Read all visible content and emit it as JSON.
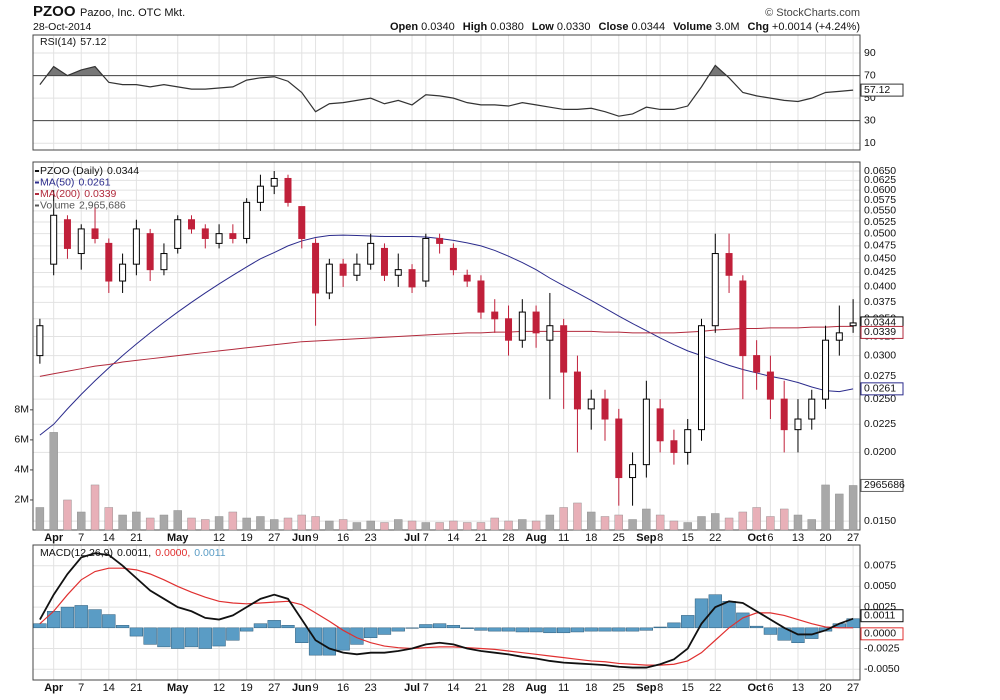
{
  "header": {
    "symbol": "PZOO",
    "name": "Pazoo, Inc. OTC Mkt.",
    "date": "28-Oct-2014",
    "source": "© StockCharts.com",
    "quote": [
      {
        "label": "Open",
        "value": "0.0340"
      },
      {
        "label": "High",
        "value": "0.0380"
      },
      {
        "label": "Low",
        "value": "0.0330"
      },
      {
        "label": "Close",
        "value": "0.0344"
      },
      {
        "label": "Volume",
        "value": "3.0M"
      },
      {
        "label": "Chg",
        "value": "+0.0014 (+4.24%)"
      }
    ]
  },
  "chart_data": [
    {
      "type": "candlestick",
      "name": "PZOO (Daily)",
      "log": true,
      "grid": true,
      "up_color": "#000000",
      "down_color": "#c0203a",
      "categories": [
        null,
        "Apr",
        null,
        "7",
        null,
        "14",
        null,
        "21",
        null,
        null,
        "May",
        null,
        null,
        "12",
        null,
        "19",
        null,
        "27",
        null,
        "Jun",
        "9",
        null,
        "16",
        null,
        "23",
        null,
        null,
        "Jul",
        "7",
        null,
        "14",
        null,
        "21",
        null,
        "28",
        null,
        "Aug",
        null,
        "11",
        null,
        "18",
        null,
        "25",
        null,
        "Sep",
        "8",
        null,
        "15",
        null,
        "22",
        null,
        null,
        "Oct",
        "6",
        null,
        "13",
        null,
        "20",
        null,
        "27"
      ],
      "open": [
        0.03,
        0.044,
        0.053,
        0.046,
        0.051,
        0.048,
        0.041,
        0.044,
        0.05,
        0.043,
        0.047,
        0.053,
        0.051,
        0.048,
        0.05,
        0.049,
        0.057,
        0.061,
        0.063,
        0.056,
        0.048,
        0.039,
        0.044,
        0.042,
        0.044,
        0.047,
        0.042,
        0.043,
        0.041,
        0.049,
        0.047,
        0.042,
        0.041,
        0.036,
        0.035,
        0.032,
        0.036,
        0.032,
        0.034,
        0.028,
        0.024,
        0.025,
        0.023,
        0.018,
        0.019,
        0.024,
        0.021,
        0.02,
        0.022,
        0.034,
        0.046,
        0.041,
        0.03,
        0.028,
        0.025,
        0.022,
        0.023,
        0.025,
        0.032,
        0.034
      ],
      "high": [
        0.035,
        0.06,
        0.054,
        0.052,
        0.056,
        0.049,
        0.046,
        0.053,
        0.051,
        0.048,
        0.054,
        0.054,
        0.052,
        0.052,
        0.052,
        0.058,
        0.064,
        0.065,
        0.064,
        0.056,
        0.049,
        0.045,
        0.045,
        0.046,
        0.05,
        0.048,
        0.046,
        0.044,
        0.05,
        0.05,
        0.048,
        0.043,
        0.042,
        0.038,
        0.037,
        0.038,
        0.037,
        0.039,
        0.035,
        0.03,
        0.026,
        0.026,
        0.024,
        0.02,
        0.027,
        0.025,
        0.022,
        0.023,
        0.035,
        0.05,
        0.05,
        0.042,
        0.032,
        0.03,
        0.027,
        0.025,
        0.026,
        0.034,
        0.037,
        0.038
      ],
      "low": [
        0.029,
        0.042,
        0.045,
        0.043,
        0.048,
        0.039,
        0.039,
        0.042,
        0.041,
        0.042,
        0.046,
        0.05,
        0.047,
        0.047,
        0.048,
        0.048,
        0.055,
        0.059,
        0.056,
        0.047,
        0.034,
        0.038,
        0.04,
        0.041,
        0.043,
        0.041,
        0.04,
        0.039,
        0.04,
        0.046,
        0.042,
        0.04,
        0.035,
        0.033,
        0.03,
        0.031,
        0.031,
        0.025,
        0.024,
        0.02,
        0.022,
        0.021,
        0.016,
        0.016,
        0.018,
        0.02,
        0.019,
        0.019,
        0.021,
        0.033,
        0.039,
        0.025,
        0.026,
        0.023,
        0.02,
        0.02,
        0.022,
        0.024,
        0.03,
        0.033
      ],
      "close": [
        0.034,
        0.054,
        0.047,
        0.051,
        0.049,
        0.041,
        0.044,
        0.051,
        0.043,
        0.046,
        0.053,
        0.051,
        0.049,
        0.05,
        0.049,
        0.057,
        0.061,
        0.063,
        0.057,
        0.049,
        0.039,
        0.044,
        0.042,
        0.044,
        0.048,
        0.042,
        0.043,
        0.04,
        0.049,
        0.048,
        0.043,
        0.041,
        0.036,
        0.035,
        0.032,
        0.036,
        0.033,
        0.034,
        0.028,
        0.024,
        0.025,
        0.023,
        0.018,
        0.019,
        0.025,
        0.021,
        0.02,
        0.022,
        0.034,
        0.046,
        0.042,
        0.03,
        0.028,
        0.025,
        0.022,
        0.023,
        0.025,
        0.032,
        0.033,
        0.0344
      ],
      "overlays": [
        {
          "name": "MA(50)",
          "color": "#2b2b8c",
          "values": [
            0.0215,
            0.0225,
            0.024,
            0.0255,
            0.027,
            0.0285,
            0.03,
            0.0315,
            0.033,
            0.0345,
            0.036,
            0.0375,
            0.039,
            0.0405,
            0.042,
            0.0435,
            0.045,
            0.0462,
            0.0475,
            0.0485,
            0.0492,
            0.0496,
            0.0497,
            0.0496,
            0.0495,
            0.0494,
            0.0494,
            0.0494,
            0.0493,
            0.049,
            0.0486,
            0.0481,
            0.0475,
            0.0466,
            0.0455,
            0.0443,
            0.043,
            0.0415,
            0.0402,
            0.039,
            0.0378,
            0.0366,
            0.0354,
            0.0343,
            0.0333,
            0.0323,
            0.0314,
            0.0306,
            0.03,
            0.0294,
            0.0288,
            0.0283,
            0.0279,
            0.0275,
            0.0272,
            0.0268,
            0.0263,
            0.0259,
            0.0258,
            0.0261
          ]
        },
        {
          "name": "MA(200)",
          "color": "#b22a3c",
          "values": [
            0.0275,
            0.0278,
            0.0281,
            0.0284,
            0.0287,
            0.0289,
            0.0292,
            0.0294,
            0.0296,
            0.0298,
            0.03,
            0.0302,
            0.0304,
            0.0306,
            0.0308,
            0.031,
            0.0312,
            0.0314,
            0.0316,
            0.0318,
            0.0319,
            0.032,
            0.0321,
            0.0322,
            0.0323,
            0.0324,
            0.0325,
            0.0326,
            0.0327,
            0.0328,
            0.0329,
            0.033,
            0.033,
            0.0331,
            0.0331,
            0.0332,
            0.0332,
            0.0332,
            0.0332,
            0.0332,
            0.0332,
            0.0331,
            0.0331,
            0.033,
            0.033,
            0.033,
            0.033,
            0.0331,
            0.0332,
            0.0334,
            0.0335,
            0.0336,
            0.0336,
            0.0337,
            0.0337,
            0.0337,
            0.0338,
            0.0338,
            0.0339,
            0.0339
          ]
        }
      ],
      "volume": {
        "name": "Volume",
        "last_label": "2,965,686",
        "color": "#a8a8a8",
        "down_color": "#e8b0b8",
        "ylim": [
          0,
          24500000
        ],
        "yticks": [
          {
            "value": 2000000,
            "label": "2M"
          },
          {
            "value": 4000000,
            "label": "4M"
          },
          {
            "value": 6000000,
            "label": "6M"
          },
          {
            "value": 8000000,
            "label": "8M"
          }
        ],
        "values": [
          1500000,
          6500000,
          2000000,
          1200000,
          3000000,
          1500000,
          1000000,
          1200000,
          800000,
          1000000,
          1300000,
          800000,
          700000,
          900000,
          1200000,
          800000,
          900000,
          700000,
          800000,
          1000000,
          900000,
          600000,
          700000,
          500000,
          600000,
          500000,
          700000,
          600000,
          500000,
          500000,
          600000,
          500000,
          500000,
          800000,
          600000,
          700000,
          600000,
          1000000,
          1500000,
          1800000,
          1200000,
          900000,
          1000000,
          700000,
          1400000,
          1000000,
          600000,
          500000,
          900000,
          1100000,
          800000,
          1200000,
          1500000,
          900000,
          1400000,
          1000000,
          700000,
          3000000,
          2400000,
          2965686
        ]
      },
      "ylim": [
        0.01445,
        0.0675
      ],
      "yticks": [
        {
          "value": 0.065,
          "label": "0.0650"
        },
        {
          "value": 0.0625,
          "label": "0.0625"
        },
        {
          "value": 0.06,
          "label": "0.0600"
        },
        {
          "value": 0.0575,
          "label": "0.0575"
        },
        {
          "value": 0.055,
          "label": "0.0550"
        },
        {
          "value": 0.0525,
          "label": "0.0525"
        },
        {
          "value": 0.05,
          "label": "0.0500"
        },
        {
          "value": 0.0475,
          "label": "0.0475"
        },
        {
          "value": 0.045,
          "label": "0.0450"
        },
        {
          "value": 0.0425,
          "label": "0.0425"
        },
        {
          "value": 0.04,
          "label": "0.0400"
        },
        {
          "value": 0.0375,
          "label": "0.0375"
        },
        {
          "value": 0.035,
          "label": "0.0350"
        },
        {
          "value": 0.0325,
          "label": "0.0325"
        },
        {
          "value": 0.03,
          "label": "0.0300"
        },
        {
          "value": 0.0275,
          "label": "0.0275"
        },
        {
          "value": 0.025,
          "label": "0.0250"
        },
        {
          "value": 0.0225,
          "label": "0.0225"
        },
        {
          "value": 0.02,
          "label": "0.0200"
        },
        {
          "value": 0.015,
          "label": "0.0150"
        }
      ]
    },
    {
      "type": "line",
      "name": "RSI(14)",
      "color": "#333333",
      "overbought": 70,
      "oversold": 30,
      "ylim": [
        4,
        106
      ],
      "yticks": [
        90,
        70,
        50,
        30,
        10
      ],
      "values": [
        62,
        78,
        70,
        75,
        78,
        64,
        62,
        62,
        60,
        62,
        60,
        58,
        58,
        59,
        60,
        66,
        68,
        69,
        65,
        55,
        38,
        45,
        46,
        48,
        50,
        45,
        48,
        44,
        53,
        52,
        50,
        46,
        44,
        44,
        43,
        46,
        44,
        42,
        40,
        40,
        41,
        38,
        34,
        36,
        42,
        40,
        40,
        43,
        60,
        79,
        68,
        55,
        52,
        50,
        48,
        47,
        50,
        55,
        56,
        57.12
      ]
    },
    {
      "type": "macd",
      "name": "MACD(12,26,9)",
      "ylim": [
        -0.0063,
        0.01
      ],
      "yticks": [
        {
          "value": 0.0075,
          "label": "0.0075"
        },
        {
          "value": 0.005,
          "label": "0.0050"
        },
        {
          "value": 0.0025,
          "label": "0.0025"
        },
        {
          "value": -0.0025,
          "label": "-0.0025"
        },
        {
          "value": -0.005,
          "label": "-0.0050"
        }
      ],
      "series": [
        {
          "type": "histogram",
          "color": "#5a9cc5",
          "legend_label": "0.0011",
          "values": [
            0.0005,
            0.002,
            0.0025,
            0.0027,
            0.0022,
            0.0016,
            0.0003,
            -0.001,
            -0.002,
            -0.0023,
            -0.0025,
            -0.0023,
            -0.0025,
            -0.0022,
            -0.0015,
            -0.0004,
            0.0005,
            0.0009,
            0.0003,
            -0.0018,
            -0.0033,
            -0.0033,
            -0.0027,
            -0.002,
            -0.0012,
            -0.0008,
            -0.0004,
            0.0,
            0.0004,
            0.0005,
            0.0003,
            -0.0001,
            -0.0003,
            -0.0004,
            -0.0004,
            -0.0005,
            -0.0005,
            -0.0006,
            -0.0006,
            -0.0005,
            -0.0004,
            -0.0004,
            -0.0004,
            -0.0004,
            -0.0003,
            0.0001,
            0.0006,
            0.0015,
            0.0035,
            0.004,
            0.0032,
            0.0018,
            0.0002,
            -0.0008,
            -0.0015,
            -0.0018,
            -0.0013,
            -0.0004,
            0.0005,
            0.0011
          ]
        },
        {
          "type": "line",
          "color": "#e03030",
          "legend_label": "0.0000,",
          "box_label": "0.0000",
          "values": [
            0.0005,
            0.002,
            0.004,
            0.0058,
            0.0068,
            0.0072,
            0.0072,
            0.007,
            0.0065,
            0.0058,
            0.005,
            0.0043,
            0.0037,
            0.0032,
            0.003,
            0.0029,
            0.003,
            0.0031,
            0.0032,
            0.0028,
            0.0018,
            0.0008,
            -0.0003,
            -0.0012,
            -0.0018,
            -0.0022,
            -0.0024,
            -0.0025,
            -0.0024,
            -0.0023,
            -0.0023,
            -0.0024,
            -0.0025,
            -0.0026,
            -0.0028,
            -0.003,
            -0.0032,
            -0.0034,
            -0.0036,
            -0.0038,
            -0.004,
            -0.0041,
            -0.0043,
            -0.0044,
            -0.0045,
            -0.0045,
            -0.0044,
            -0.004,
            -0.003,
            -0.0015,
            0.0,
            0.0012,
            0.0018,
            0.0018,
            0.0015,
            0.001,
            0.0005,
            0.0001,
            0.0,
            0.0
          ]
        },
        {
          "type": "line",
          "color": "#111111",
          "legend_label": "0.0011,",
          "values": [
            0.001,
            0.004,
            0.0065,
            0.0085,
            0.009,
            0.0088,
            0.0075,
            0.006,
            0.0045,
            0.0035,
            0.0025,
            0.002,
            0.0012,
            0.001,
            0.0015,
            0.0025,
            0.0035,
            0.004,
            0.0035,
            0.001,
            -0.0015,
            -0.0025,
            -0.003,
            -0.0032,
            -0.003,
            -0.003,
            -0.0028,
            -0.0025,
            -0.002,
            -0.0018,
            -0.002,
            -0.0025,
            -0.0028,
            -0.003,
            -0.0032,
            -0.0035,
            -0.0037,
            -0.004,
            -0.0042,
            -0.0043,
            -0.0044,
            -0.0045,
            -0.0047,
            -0.0048,
            -0.0048,
            -0.0044,
            -0.0038,
            -0.0025,
            0.0005,
            0.0025,
            0.0032,
            0.003,
            0.002,
            0.001,
            0.0,
            -0.0008,
            -0.0008,
            -0.0003,
            0.0005,
            0.0011
          ]
        }
      ]
    }
  ]
}
